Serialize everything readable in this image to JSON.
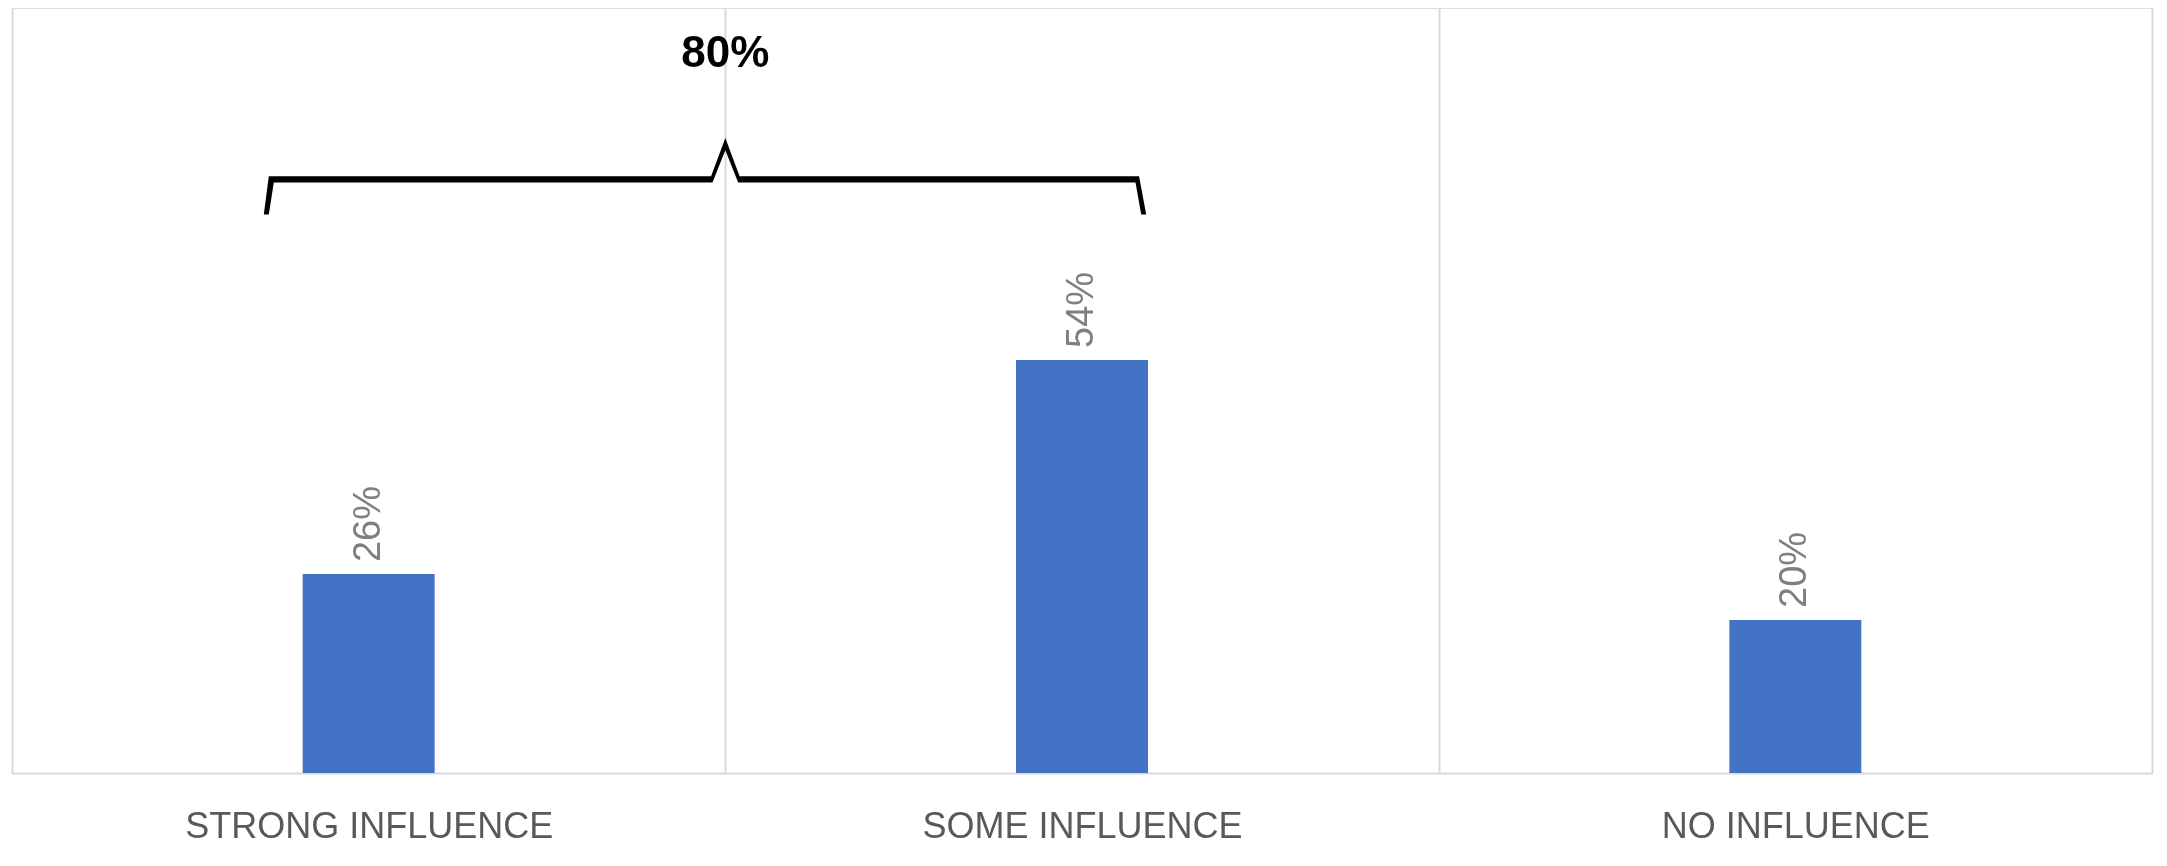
{
  "chart_data": {
    "type": "bar",
    "categories": [
      "STRONG INFLUENCE",
      "SOME INFLUENCE",
      "NO INFLUENCE"
    ],
    "values": [
      26,
      54,
      20
    ],
    "value_labels": [
      "26%",
      "54%",
      "20%"
    ],
    "color": "#4472c4",
    "ylim": [
      0,
      100
    ],
    "grid": "x",
    "annotations": [
      "80%"
    ]
  }
}
